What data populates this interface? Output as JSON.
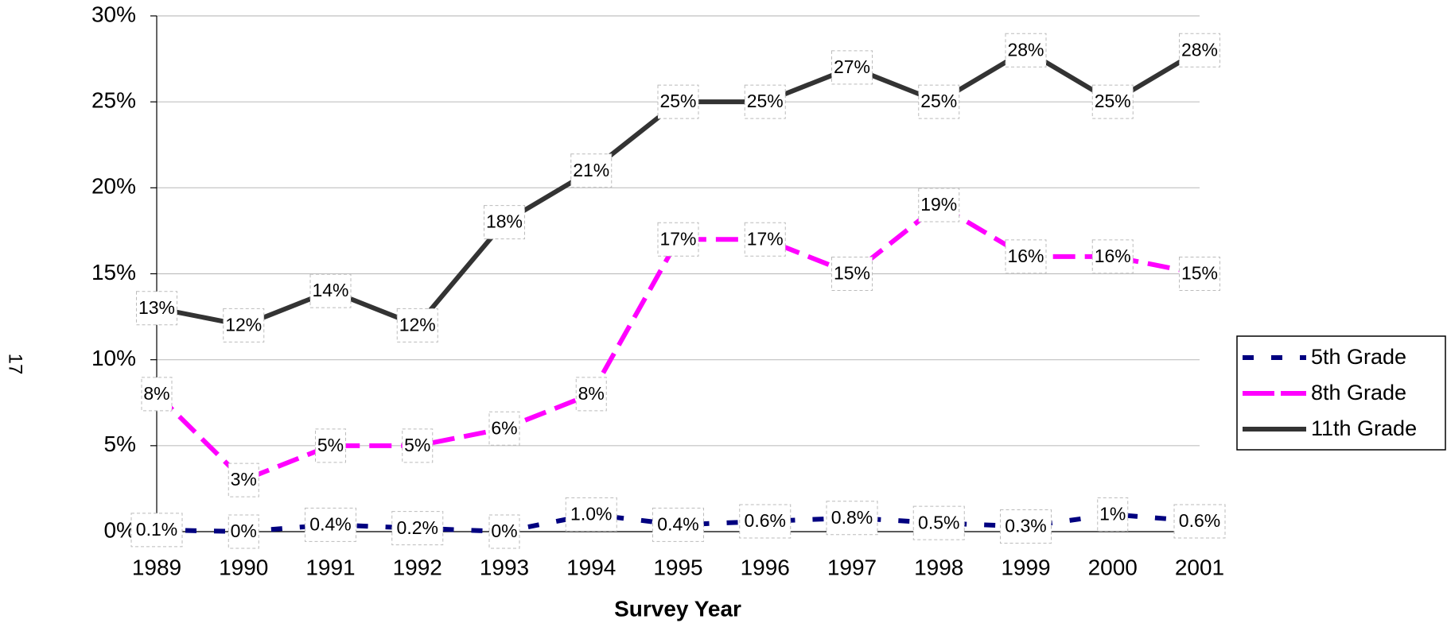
{
  "page_number": "17",
  "chart_data": {
    "type": "line",
    "x_label": "Survey Year",
    "categories": [
      "1989",
      "1990",
      "1991",
      "1992",
      "1993",
      "1994",
      "1995",
      "1996",
      "1997",
      "1998",
      "1999",
      "2000",
      "2001"
    ],
    "series": [
      {
        "name": "5th Grade",
        "color": "#000080",
        "dash": "14 22",
        "values": [
          0.1,
          0,
          0.4,
          0.2,
          0,
          1.0,
          0.4,
          0.6,
          0.8,
          0.5,
          0.3,
          1,
          0.6
        ],
        "value_labels": [
          "0.1%",
          "0%",
          "0.4%",
          "0.2%",
          "0%",
          "1.0%",
          "0.4%",
          "0.6%",
          "0.8%",
          "0.5%",
          "0.3%",
          "1%",
          "0.6%"
        ]
      },
      {
        "name": "8th Grade",
        "color": "#ff00ff",
        "dash": "28 12",
        "values": [
          8,
          3,
          5,
          5,
          6,
          8,
          17,
          17,
          15,
          19,
          16,
          16,
          15
        ],
        "value_labels": [
          "8%",
          "3%",
          "5%",
          "5%",
          "6%",
          "8%",
          "17%",
          "17%",
          "15%",
          "19%",
          "16%",
          "16%",
          "15%"
        ]
      },
      {
        "name": "11th Grade",
        "color": "#333333",
        "dash": "none",
        "values": [
          13,
          12,
          14,
          12,
          18,
          21,
          25,
          25,
          27,
          25,
          28,
          25,
          28
        ],
        "value_labels": [
          "13%",
          "12%",
          "14%",
          "12%",
          "18%",
          "21%",
          "25%",
          "25%",
          "27%",
          "25%",
          "28%",
          "25%",
          "28%"
        ]
      }
    ],
    "ylim": [
      0,
      30
    ],
    "yticks": [
      {
        "value": 0,
        "label": "0%"
      },
      {
        "value": 5,
        "label": "5%"
      },
      {
        "value": 10,
        "label": "10%"
      },
      {
        "value": 15,
        "label": "15%"
      },
      {
        "value": 20,
        "label": "20%"
      },
      {
        "value": 25,
        "label": "25%"
      },
      {
        "value": 30,
        "label": "30%"
      }
    ],
    "grid": true,
    "legend": "right"
  }
}
